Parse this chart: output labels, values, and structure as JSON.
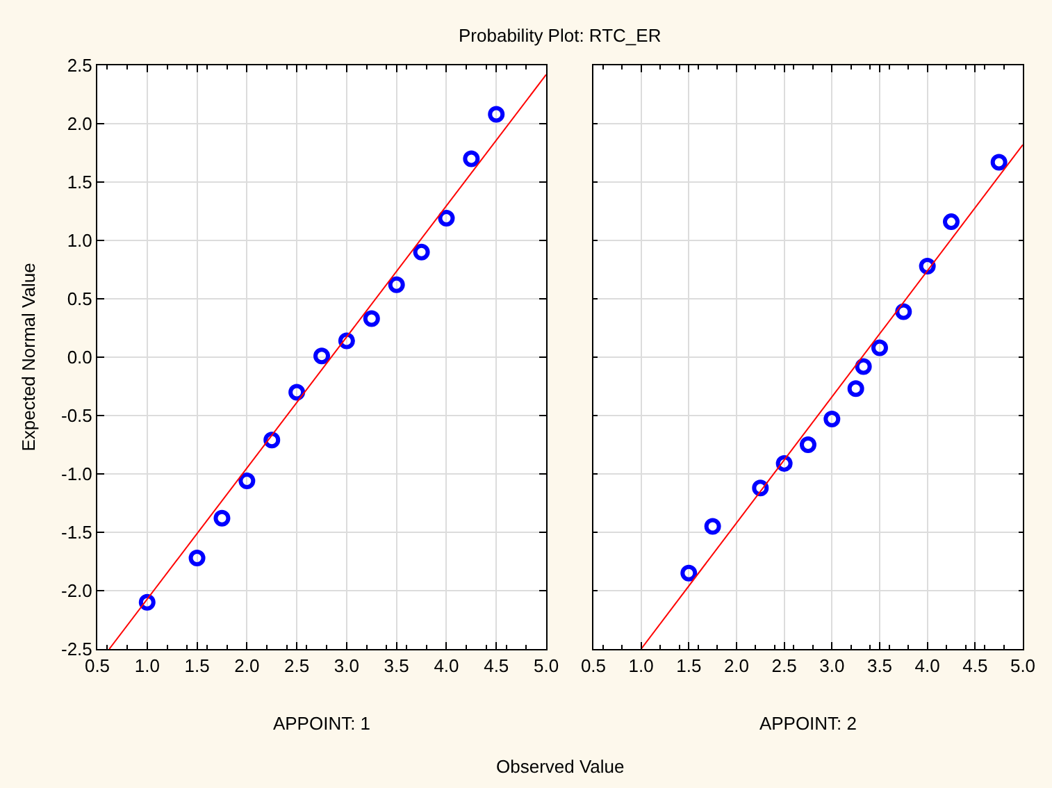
{
  "chart_data": [
    {
      "type": "scatter",
      "title": "Probability Plot: RTC_ER",
      "ylabel": "Expected Normal Value",
      "xlabel": "APPOINT: 1",
      "annotations": [
        "Observed Value"
      ],
      "xlim": [
        0.5,
        5.0
      ],
      "xticks": [
        {
          "value": 0.5,
          "label": "0.5"
        },
        {
          "value": 1,
          "label": "1.0"
        },
        {
          "value": 1.5,
          "label": "1.5"
        },
        {
          "value": 2,
          "label": "2.0"
        },
        {
          "value": 2.5,
          "label": "2.5"
        },
        {
          "value": 3,
          "label": "3.0"
        },
        {
          "value": 3.5,
          "label": "3.5"
        },
        {
          "value": 4,
          "label": "4.0"
        },
        {
          "value": 4.5,
          "label": "4.5"
        },
        {
          "value": 5,
          "label": "5.0"
        }
      ],
      "ylim": [
        -2.5,
        2.5
      ],
      "yticks": [
        {
          "value": -2.5,
          "label": "-2.5"
        },
        {
          "value": -2,
          "label": "-2.0"
        },
        {
          "value": -1.5,
          "label": "-1.5"
        },
        {
          "value": -1,
          "label": "-1.0"
        },
        {
          "value": -0.5,
          "label": "-0.5"
        },
        {
          "value": 0,
          "label": "0.0"
        },
        {
          "value": 0.5,
          "label": "0.5"
        },
        {
          "value": 1,
          "label": "1.0"
        },
        {
          "value": 1.5,
          "label": "1.5"
        },
        {
          "value": 2,
          "label": "2.0"
        },
        {
          "value": 2.5,
          "label": "2.5"
        }
      ],
      "grid": true,
      "marker": "circle",
      "series": [
        {
          "color": "#0000ff",
          "x": [
            1.0,
            1.5,
            1.75,
            2.0,
            2.25,
            2.5,
            2.75,
            3.0,
            3.25,
            3.5,
            3.75,
            4.0,
            4.25,
            4.5
          ],
          "values": [
            -2.1,
            -1.72,
            -1.38,
            -1.06,
            -0.71,
            -0.3,
            0.01,
            0.14,
            0.33,
            0.62,
            0.9,
            1.19,
            1.7,
            2.08
          ]
        },
        {
          "type": "line",
          "color": "#ff0000",
          "marker": "none",
          "x": [
            0.62,
            5.0
          ],
          "values": [
            -2.5,
            2.42
          ]
        }
      ]
    },
    {
      "type": "scatter",
      "xlabel": "APPOINT: 2",
      "xlim": [
        0.5,
        5.0
      ],
      "xticks": [
        {
          "value": 0.5,
          "label": "0.5"
        },
        {
          "value": 1,
          "label": "1.0"
        },
        {
          "value": 1.5,
          "label": "1.5"
        },
        {
          "value": 2,
          "label": "2.0"
        },
        {
          "value": 2.5,
          "label": "2.5"
        },
        {
          "value": 3,
          "label": "3.0"
        },
        {
          "value": 3.5,
          "label": "3.5"
        },
        {
          "value": 4,
          "label": "4.0"
        },
        {
          "value": 4.5,
          "label": "4.5"
        },
        {
          "value": 5,
          "label": "5.0"
        }
      ],
      "ylim": [
        -2.5,
        2.5
      ],
      "yticks": [
        {
          "value": -2.5,
          "label": null
        },
        {
          "value": -2,
          "label": null
        },
        {
          "value": -1.5,
          "label": null
        },
        {
          "value": -1,
          "label": null
        },
        {
          "value": -0.5,
          "label": null
        },
        {
          "value": 0,
          "label": null
        },
        {
          "value": 0.5,
          "label": null
        },
        {
          "value": 1,
          "label": null
        },
        {
          "value": 1.5,
          "label": null
        },
        {
          "value": 2,
          "label": null
        },
        {
          "value": 2.5,
          "label": null
        }
      ],
      "tick_labels": "x",
      "grid": true,
      "marker": "circle",
      "series": [
        {
          "color": "#0000ff",
          "x": [
            1.5,
            1.75,
            2.25,
            2.5,
            2.75,
            3.0,
            3.25,
            3.33,
            3.5,
            3.75,
            4.0,
            4.25,
            4.75
          ],
          "values": [
            -1.85,
            -1.45,
            -1.12,
            -0.91,
            -0.75,
            -0.53,
            -0.27,
            -0.08,
            0.08,
            0.39,
            0.78,
            1.16,
            1.67
          ]
        },
        {
          "type": "line",
          "color": "#ff0000",
          "marker": "none",
          "x": [
            1.0,
            5.0
          ],
          "values": [
            -2.5,
            1.82
          ]
        }
      ]
    }
  ]
}
